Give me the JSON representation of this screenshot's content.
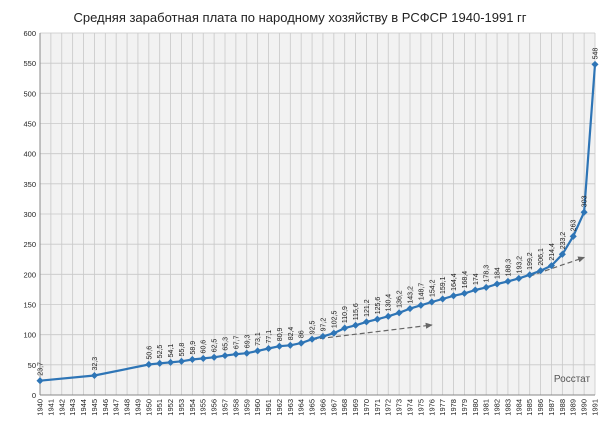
{
  "chart_data": {
    "type": "line",
    "title": "Средняя заработная плата по народному хозяйству в РСФСР 1940-1991 гг",
    "xlabel": "",
    "ylabel": "",
    "ylim": [
      0,
      600
    ],
    "y_ticks": [
      0,
      50,
      100,
      150,
      200,
      250,
      300,
      350,
      400,
      450,
      500,
      550,
      600
    ],
    "x_ticks": [
      1940,
      1941,
      1942,
      1943,
      1944,
      1945,
      1946,
      1947,
      1948,
      1949,
      1950,
      1951,
      1952,
      1953,
      1954,
      1955,
      1956,
      1957,
      1958,
      1959,
      1960,
      1961,
      1962,
      1963,
      1964,
      1965,
      1966,
      1967,
      1968,
      1969,
      1970,
      1971,
      1972,
      1973,
      1974,
      1975,
      1976,
      1977,
      1978,
      1979,
      1980,
      1981,
      1982,
      1983,
      1984,
      1985,
      1986,
      1987,
      1988,
      1989,
      1990,
      1991
    ],
    "grid": true,
    "legend": "none",
    "series": [
      {
        "x": [
          1940,
          1945,
          1950,
          1951,
          1952,
          1953,
          1954,
          1955,
          1956,
          1957,
          1958,
          1959,
          1960,
          1961,
          1962,
          1963,
          1964,
          1965,
          1966,
          1967,
          1968,
          1969,
          1970,
          1971,
          1972,
          1973,
          1974,
          1975,
          1976,
          1977,
          1978,
          1979,
          1980,
          1981,
          1982,
          1983,
          1984,
          1985,
          1986,
          1987,
          1988,
          1989,
          1990,
          1991
        ],
        "values": [
          23.7,
          32.3,
          50.6,
          52.5,
          54.1,
          55.8,
          58.9,
          60.6,
          62.5,
          65.3,
          67.7,
          69.3,
          73.1,
          77.1,
          80.9,
          82.4,
          86,
          92.5,
          97.2,
          102.5,
          110.9,
          115.6,
          121.2,
          125.6,
          130.4,
          136.2,
          143.2,
          148.7,
          154.2,
          159.1,
          164.4,
          168.4,
          174,
          178.3,
          184,
          188.3,
          193.2,
          199.2,
          206.1,
          214.4,
          233.2,
          263,
          303,
          548
        ],
        "labels": [
          "23,7",
          "32,3",
          "50,6",
          "52,5",
          "54,1",
          "55,8",
          "58,9",
          "60,6",
          "62,5",
          "65,3",
          "67,7",
          "69,3",
          "73,1",
          "77,1",
          "80,9",
          "82,4",
          "86",
          "92,5",
          "97,2",
          "102,5",
          "110,9",
          "115,6",
          "121,2",
          "125,6",
          "130,4",
          "136,2",
          "143,2",
          "148,7",
          "154,2",
          "159,1",
          "164,4",
          "168,4",
          "174",
          "178,3",
          "184",
          "188,3",
          "193,2",
          "199,2",
          "206,1",
          "214,4",
          "233,2",
          "263",
          "303",
          "548"
        ],
        "color": "#2e75b6"
      }
    ],
    "trend_arrows": [
      {
        "x": [
          1965,
          1976
        ],
        "values": [
          92,
          116
        ],
        "color": "#666666"
      },
      {
        "x": [
          1985,
          1990
        ],
        "values": [
          197,
          228
        ],
        "color": "#666666"
      }
    ],
    "annotation": "Росстат",
    "colors": {
      "grid": "#c8c8c8",
      "plot_bg": "#f2f2f2",
      "axis": "#888888"
    }
  }
}
